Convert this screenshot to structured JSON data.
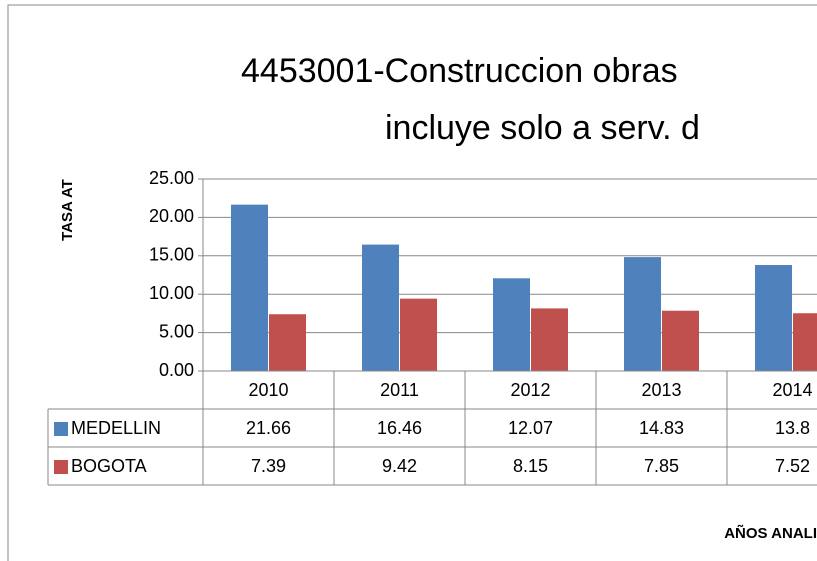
{
  "chart_data": {
    "type": "bar",
    "title": [
      "4453001-Construccion obras",
      "incluye solo   a serv. d"
    ],
    "y_label": "TASA AT",
    "x_label": "AÑOS ANALI",
    "categories": [
      "2010",
      "2011",
      "2012",
      "2013",
      "2014"
    ],
    "series": [
      {
        "name": "MEDELLIN",
        "color": "#4f81bd",
        "values": [
          21.66,
          16.46,
          12.07,
          14.83,
          13.8
        ]
      },
      {
        "name": "BOGOTA",
        "color": "#c0504d",
        "values": [
          7.39,
          9.42,
          8.15,
          7.85,
          7.52
        ]
      }
    ],
    "ylim": [
      0,
      25
    ],
    "yticks": [
      {
        "value": 0,
        "label": "0.00"
      },
      {
        "value": 5,
        "label": "5.00"
      },
      {
        "value": 10,
        "label": "10.00"
      },
      {
        "value": 15,
        "label": "15.00"
      },
      {
        "value": 20,
        "label": "20.00"
      },
      {
        "value": 25,
        "label": "25.00"
      }
    ],
    "grid": true
  }
}
